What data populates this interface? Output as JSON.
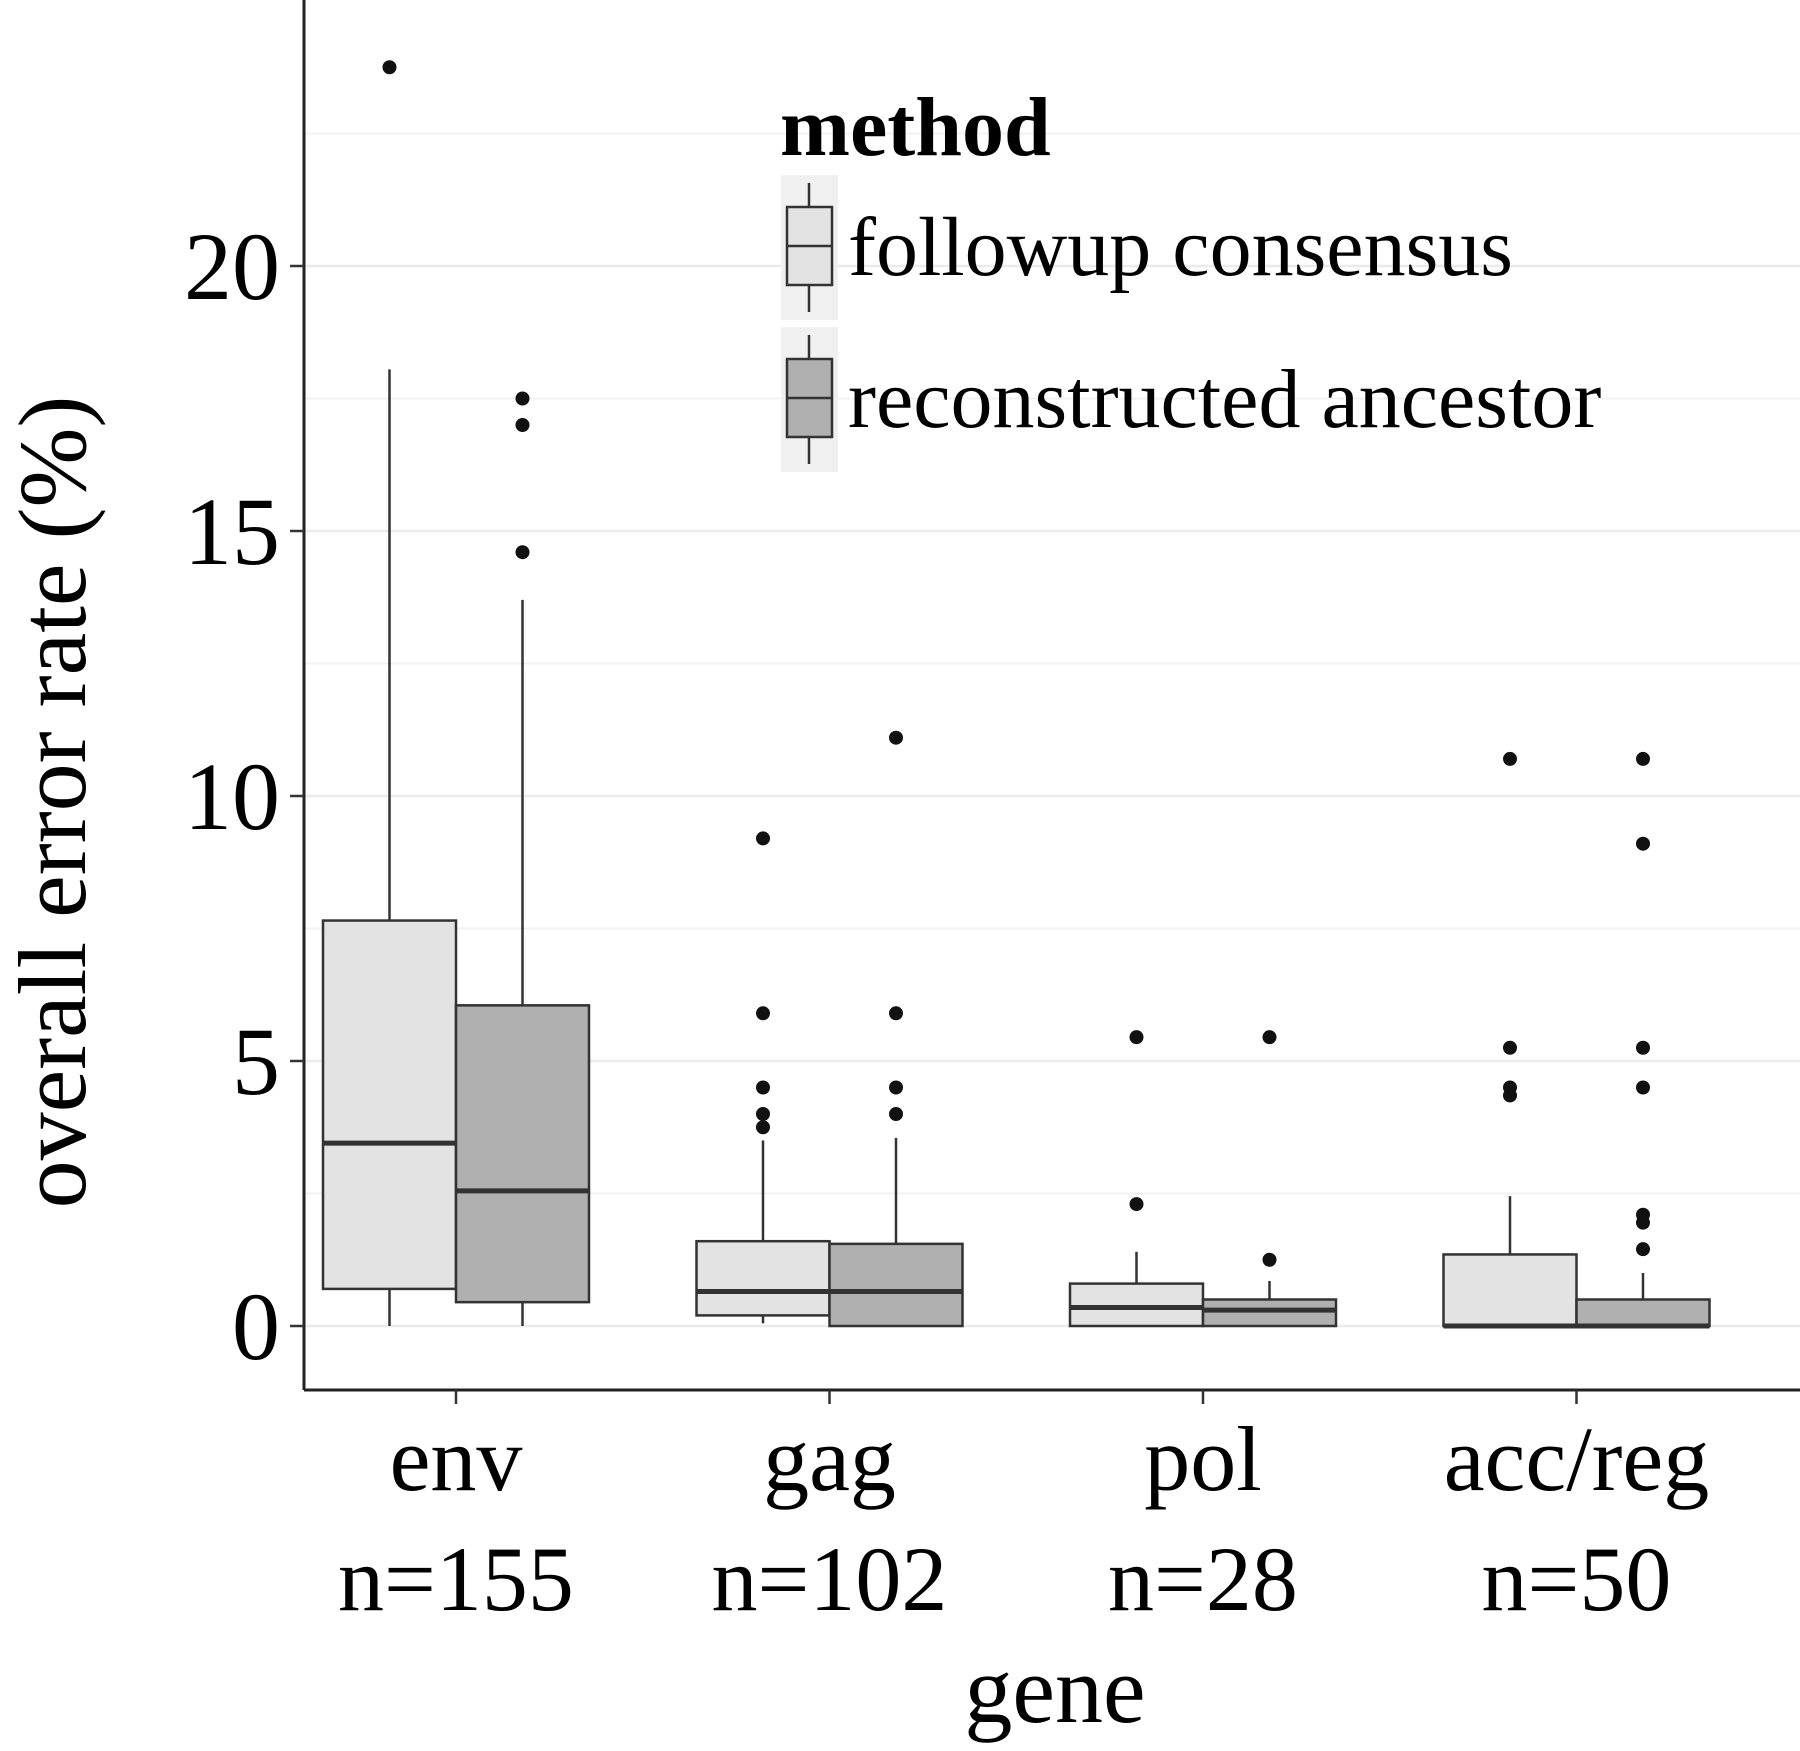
{
  "chart_data": {
    "type": "boxplot",
    "xlabel": "gene",
    "ylabel": "overall error rate (%)",
    "ylim": [
      -1.2,
      24.5
    ],
    "yticks": [
      0,
      5,
      10,
      15,
      20
    ],
    "grid": true,
    "legend": {
      "title": "method",
      "placement": "top-right inside",
      "entries": [
        {
          "label": "followup consensus",
          "color": "#e3e3e3"
        },
        {
          "label": "reconstructed ancestor",
          "color": "#b0b0b0"
        }
      ]
    },
    "categories": [
      {
        "name": "env",
        "n": "n=155"
      },
      {
        "name": "gag",
        "n": "n=102"
      },
      {
        "name": "pol",
        "n": "n=28"
      },
      {
        "name": "acc/reg",
        "n": "n=50"
      }
    ],
    "series": [
      {
        "name": "followup consensus",
        "color": "#e3e3e3",
        "boxes": [
          {
            "whisker_low": 0,
            "q1": 0.7,
            "median": 3.45,
            "q3": 7.65,
            "whisker_high": 18.05,
            "outliers": [
              23.75
            ]
          },
          {
            "whisker_low": 0.05,
            "q1": 0.2,
            "median": 0.65,
            "q3": 1.6,
            "whisker_high": 3.5,
            "outliers": [
              3.75,
              4.0,
              4.5,
              5.9,
              9.2
            ]
          },
          {
            "whisker_low": 0,
            "q1": 0,
            "median": 0.35,
            "q3": 0.8,
            "whisker_high": 1.4,
            "outliers": [
              2.3,
              5.45
            ]
          },
          {
            "whisker_low": 0,
            "q1": 0,
            "median": 0,
            "q3": 1.35,
            "whisker_high": 2.45,
            "outliers": [
              4.35,
              4.5,
              5.25,
              10.7
            ]
          }
        ]
      },
      {
        "name": "reconstructed ancestor",
        "color": "#b0b0b0",
        "boxes": [
          {
            "whisker_low": 0,
            "q1": 0.45,
            "median": 2.55,
            "q3": 6.05,
            "whisker_high": 13.7,
            "outliers": [
              14.6,
              17.0,
              17.5
            ]
          },
          {
            "whisker_low": 0,
            "q1": 0,
            "median": 0.65,
            "q3": 1.55,
            "whisker_high": 3.55,
            "outliers": [
              4.0,
              4.5,
              5.9,
              11.1
            ]
          },
          {
            "whisker_low": 0,
            "q1": 0,
            "median": 0.3,
            "q3": 0.5,
            "whisker_high": 0.85,
            "outliers": [
              1.25,
              5.45
            ]
          },
          {
            "whisker_low": 0,
            "q1": 0,
            "median": 0,
            "q3": 0.5,
            "whisker_high": 1.0,
            "outliers": [
              1.45,
              1.95,
              2.1,
              4.5,
              5.25,
              9.1,
              10.7
            ]
          }
        ]
      }
    ]
  }
}
